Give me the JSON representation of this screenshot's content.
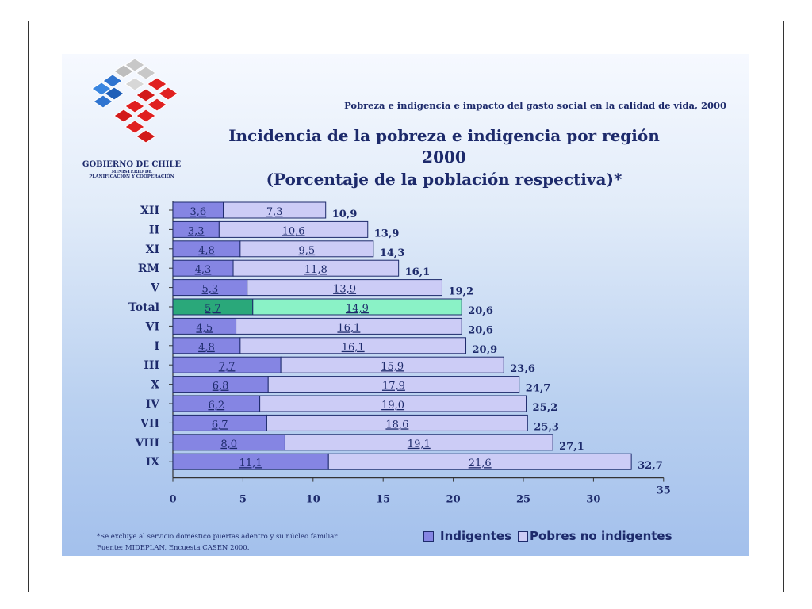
{
  "header": {
    "subtitle": "Pobreza e indigencia e impacto del gasto social en la calidad de vida, 2000",
    "org": "GOBIERNO DE CHILE",
    "ministry_line1": "MINISTERIO DE",
    "ministry_line2": "PLANIFICACIÓN Y COOPERACIÓN"
  },
  "footer": {
    "note": "*Se excluye al servicio doméstico puertas adentro y su núcleo familiar.",
    "source": "Fuente: MIDEPLAN, Encuesta CASEN 2000."
  },
  "chart_data": {
    "type": "bar",
    "orientation": "horizontal",
    "stacked": true,
    "title_line1": "Incidencia de la pobreza e indigencia por región",
    "title_line2": "2000",
    "title_line3": "(Porcentaje de la población respectiva)*",
    "categories": [
      "XII",
      "II",
      "XI",
      "RM",
      "V",
      "Total",
      "VI",
      "I",
      "III",
      "X",
      "IV",
      "VII",
      "VIII",
      "IX"
    ],
    "series": [
      {
        "name": "Indigentes",
        "values": [
          3.6,
          3.3,
          4.8,
          4.3,
          5.3,
          5.7,
          4.5,
          4.8,
          7.7,
          6.8,
          6.2,
          6.7,
          8.0,
          11.1
        ],
        "color": "#8585e3"
      },
      {
        "name": "Pobres no indigentes",
        "values": [
          7.3,
          10.6,
          9.5,
          11.8,
          13.9,
          14.9,
          16.1,
          16.1,
          15.9,
          17.9,
          19.0,
          18.6,
          19.1,
          21.6
        ],
        "color": "#ccccf6"
      }
    ],
    "labels_indigentes": [
      "3,6",
      "3,3",
      "4,8",
      "4,3",
      "5,3",
      "5,7",
      "4,5",
      "4,8",
      "7,7",
      "6,8",
      "6,2",
      "6,7",
      "8,0",
      "11,1"
    ],
    "labels_pobres": [
      "7,3",
      "10,6",
      "9,5",
      "11,8",
      "13,9",
      "14,9",
      "16,1",
      "16,1",
      "15,9",
      "17,9",
      "19,0",
      "18,6",
      "19,1",
      "21,6"
    ],
    "totals": [
      10.9,
      13.9,
      14.3,
      16.1,
      19.2,
      20.6,
      20.6,
      20.9,
      23.6,
      24.7,
      25.2,
      25.3,
      27.1,
      32.7
    ],
    "labels_totals": [
      "10,9",
      "13,9",
      "14,3",
      "16,1",
      "19,2",
      "20,6",
      "20,6",
      "20,9",
      "23,6",
      "24,7",
      "25,2",
      "25,3",
      "27,1",
      "32,7"
    ],
    "highlight": {
      "category": "Total",
      "color_indigentes": "#2aa87a",
      "color_pobres": "#8af2c6"
    },
    "xlim": [
      0,
      35
    ],
    "xticks": [
      0,
      5,
      10,
      15,
      20,
      25,
      30,
      35
    ],
    "grid": false,
    "legend_position": "bottom-right"
  }
}
